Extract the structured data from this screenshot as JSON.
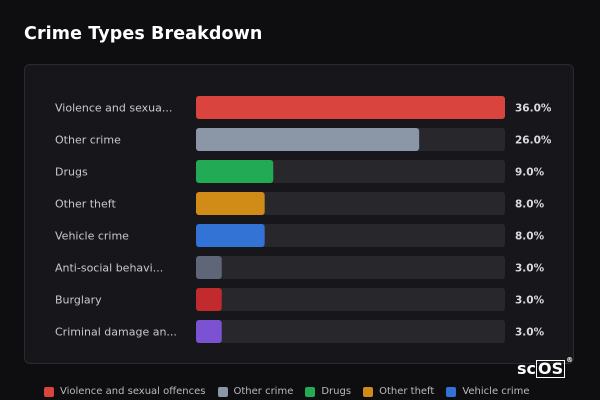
{
  "title": "Crime Types Breakdown",
  "colors": {
    "track": "#27272c",
    "label": "#c8c8cd",
    "value": "#d9d9de"
  },
  "chart_data": {
    "type": "bar",
    "orientation": "horizontal",
    "title": "Crime Types Breakdown",
    "categories": [
      "Violence and sexua...",
      "Other crime",
      "Drugs",
      "Other theft",
      "Vehicle crime",
      "Anti-social behavi...",
      "Burglary",
      "Criminal damage an..."
    ],
    "values": [
      36.0,
      26.0,
      9.0,
      8.0,
      8.0,
      3.0,
      3.0,
      3.0
    ],
    "value_labels": [
      "36.0%",
      "26.0%",
      "9.0%",
      "8.0%",
      "8.0%",
      "3.0%",
      "3.0%",
      "3.0%"
    ],
    "bar_colors": [
      "#d9443f",
      "#8b96a6",
      "#22aa55",
      "#d18b17",
      "#3473d6",
      "#5e6677",
      "#c12b2e",
      "#7b52d1"
    ],
    "xlim": [
      0,
      36
    ],
    "grid": false,
    "legend_position": "bottom"
  },
  "legend": [
    {
      "label": "Violence and sexual offences",
      "color": "#d9443f"
    },
    {
      "label": "Other crime",
      "color": "#8b96a6"
    },
    {
      "label": "Drugs",
      "color": "#22aa55"
    },
    {
      "label": "Other theft",
      "color": "#d18b17"
    },
    {
      "label": "Vehicle crime",
      "color": "#3473d6"
    }
  ],
  "watermark": {
    "prefix": "sc",
    "boxed": "OS",
    "mark": "®"
  }
}
